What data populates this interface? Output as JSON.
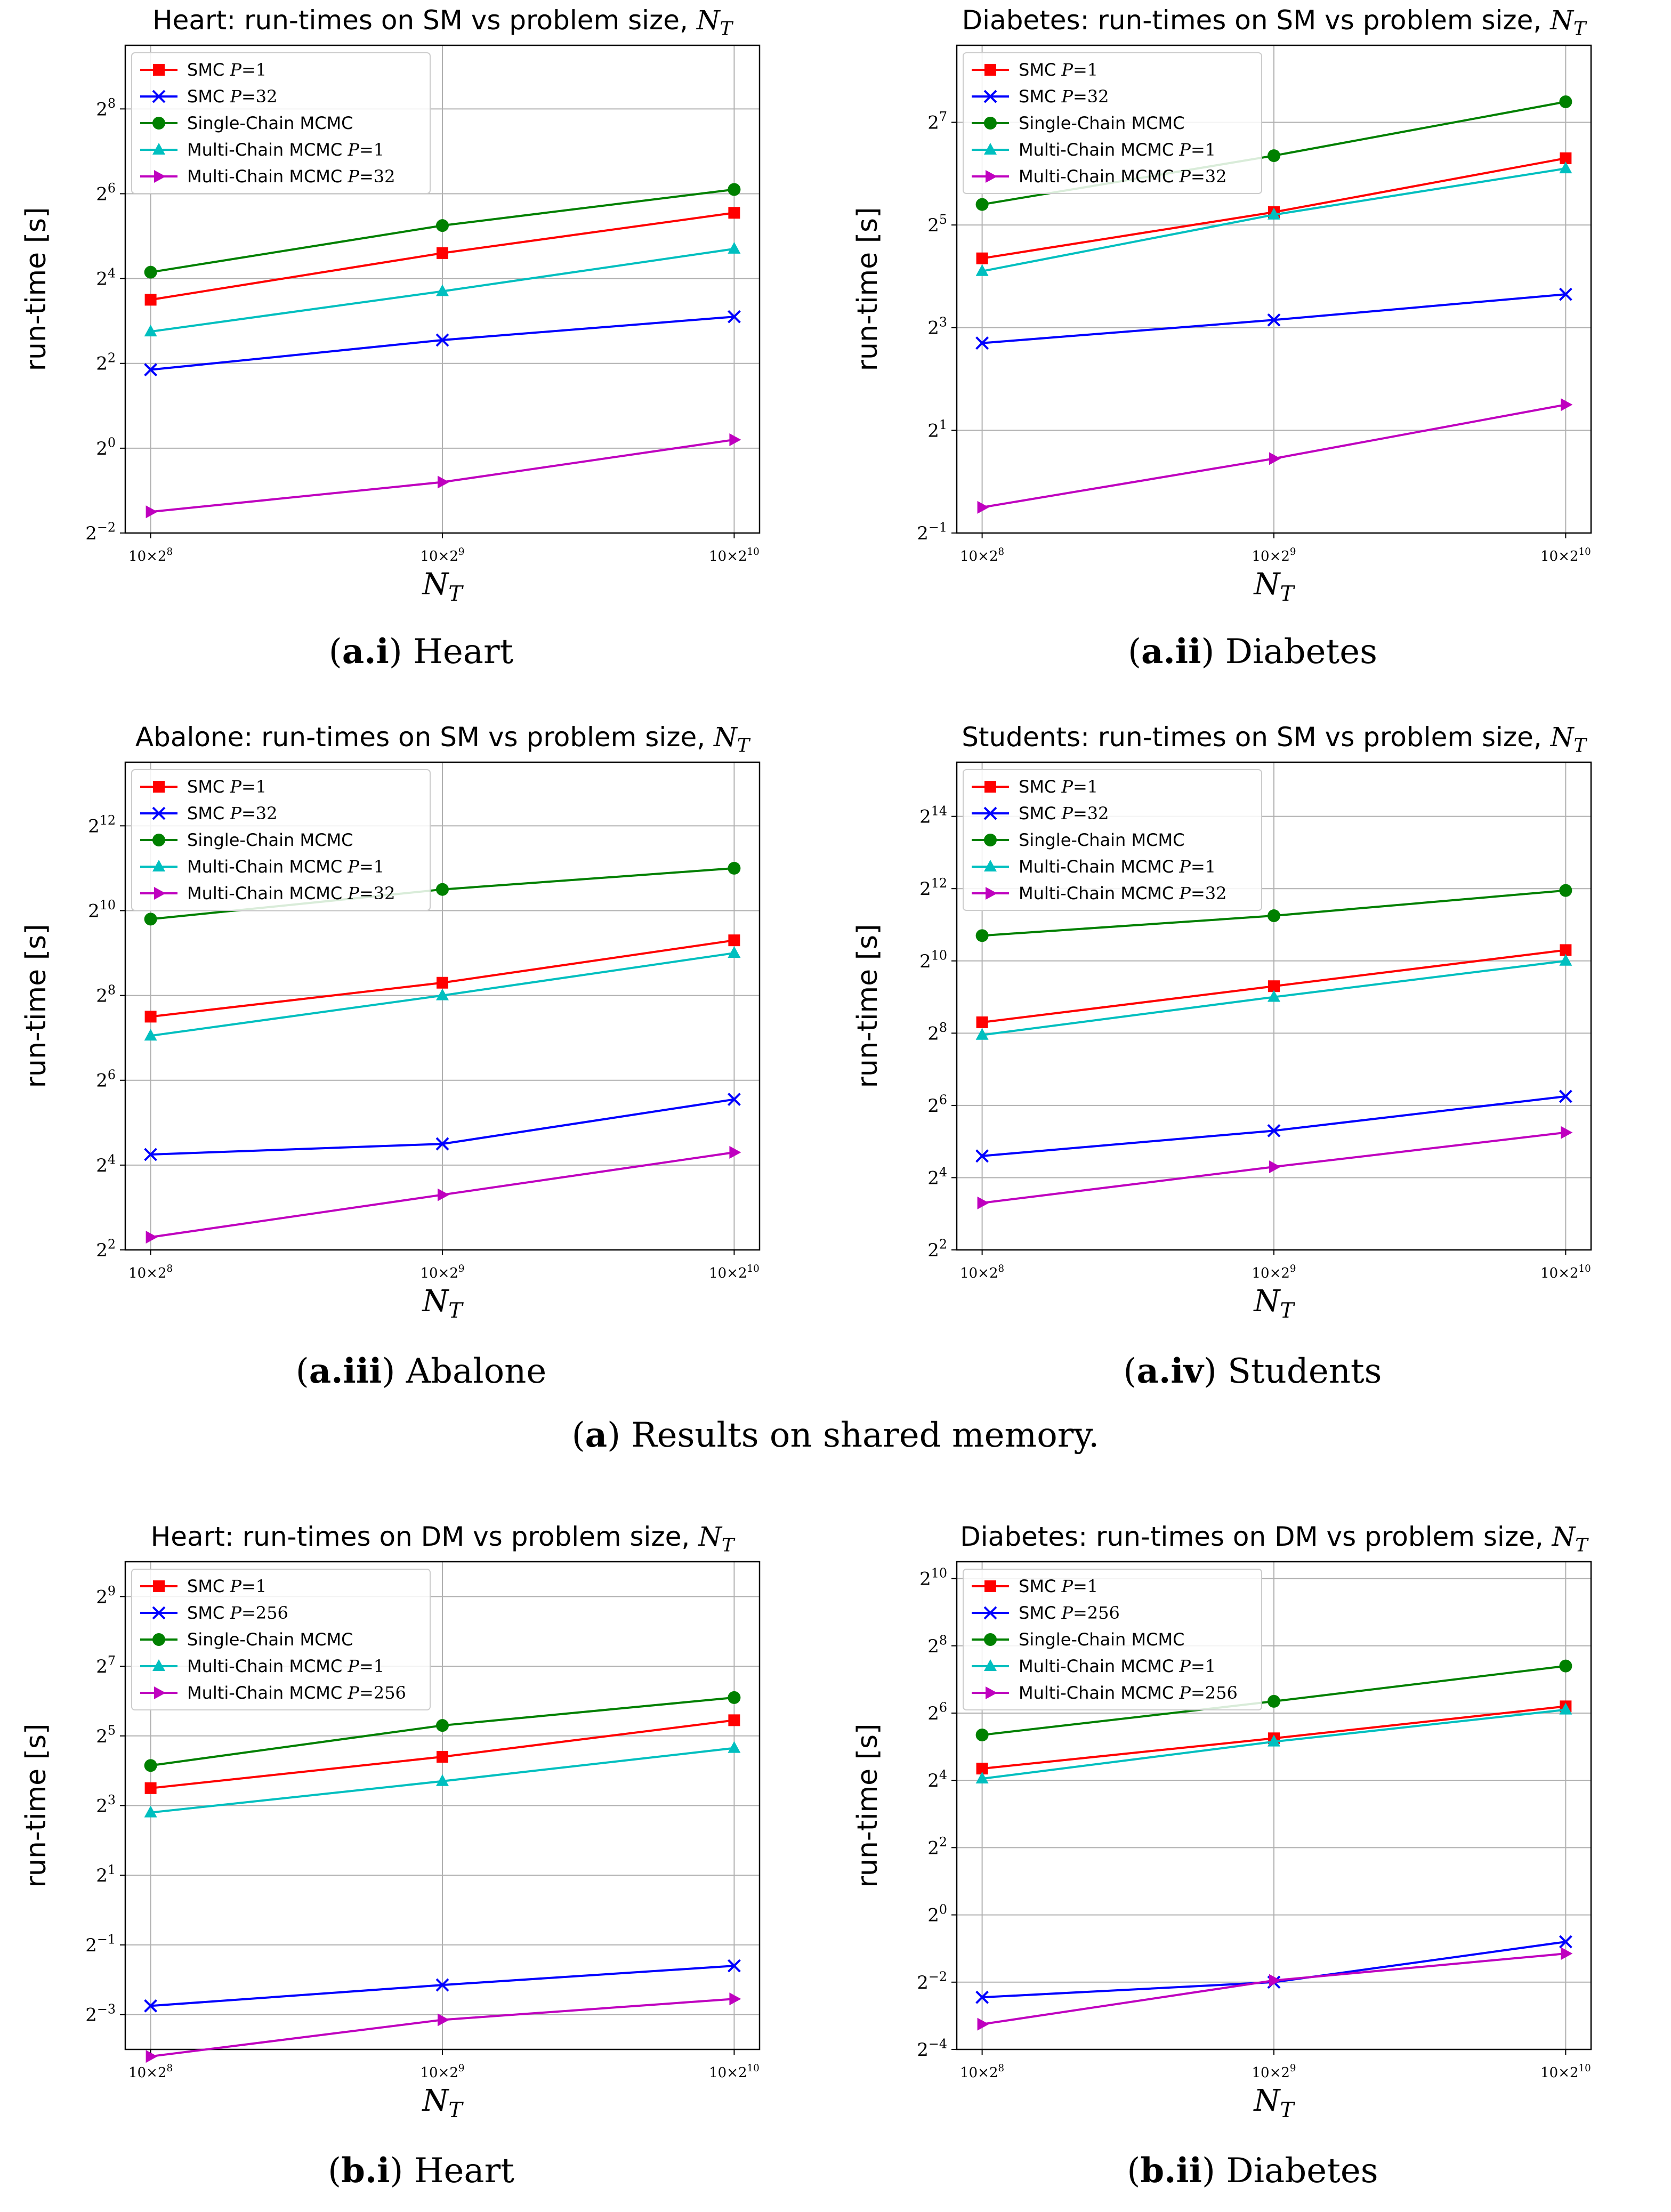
{
  "chart_data": [
    {
      "id": "a-i",
      "type": "line",
      "title": "Heart: run-times on SM vs problem size, N_T",
      "xlabel": "N_T",
      "ylabel": "run-time [s]",
      "yscale": "log2",
      "x_tick_labels": [
        "10×2^8",
        "10×2^9",
        "10×2^10"
      ],
      "ylim_log2": [
        -2,
        9.5
      ],
      "y_ticks_log2": [
        -2,
        0,
        2,
        4,
        6,
        8
      ],
      "legend_position": "top-left",
      "series": [
        {
          "name": "SMC P=1",
          "color": "#ff0000",
          "marker": "square",
          "log2_values": [
            3.5,
            4.6,
            5.55
          ]
        },
        {
          "name": "SMC P=32",
          "color": "#0000ff",
          "marker": "x",
          "log2_values": [
            1.85,
            2.55,
            3.1
          ]
        },
        {
          "name": "Single-Chain MCMC",
          "color": "#008000",
          "marker": "circle",
          "log2_values": [
            4.15,
            5.25,
            6.1
          ]
        },
        {
          "name": "Multi-Chain MCMC P=1",
          "color": "#00bfbf",
          "marker": "triangle-up",
          "log2_values": [
            2.75,
            3.7,
            4.7
          ]
        },
        {
          "name": "Multi-Chain MCMC P=32",
          "color": "#bf00bf",
          "marker": "triangle-right",
          "log2_values": [
            -1.5,
            -0.8,
            0.2
          ]
        }
      ]
    },
    {
      "id": "a-ii",
      "type": "line",
      "title": "Diabetes: run-times on SM vs problem size, N_T",
      "xlabel": "N_T",
      "ylabel": "run-time [s]",
      "yscale": "log2",
      "x_tick_labels": [
        "10×2^8",
        "10×2^9",
        "10×2^10"
      ],
      "ylim_log2": [
        -1,
        8.5
      ],
      "y_ticks_log2": [
        -1,
        1,
        3,
        5,
        7
      ],
      "legend_position": "top-left",
      "series": [
        {
          "name": "SMC P=1",
          "color": "#ff0000",
          "marker": "square",
          "log2_values": [
            4.35,
            5.25,
            6.3
          ]
        },
        {
          "name": "SMC P=32",
          "color": "#0000ff",
          "marker": "x",
          "log2_values": [
            2.7,
            3.15,
            3.65
          ]
        },
        {
          "name": "Single-Chain MCMC",
          "color": "#008000",
          "marker": "circle",
          "log2_values": [
            5.4,
            6.35,
            7.4
          ]
        },
        {
          "name": "Multi-Chain MCMC P=1",
          "color": "#00bfbf",
          "marker": "triangle-up",
          "log2_values": [
            4.1,
            5.2,
            6.1
          ]
        },
        {
          "name": "Multi-Chain MCMC P=32",
          "color": "#bf00bf",
          "marker": "triangle-right",
          "log2_values": [
            -0.5,
            0.45,
            1.5
          ]
        }
      ]
    },
    {
      "id": "a-iii",
      "type": "line",
      "title": "Abalone: run-times on SM vs problem size, N_T",
      "xlabel": "N_T",
      "ylabel": "run-time [s]",
      "yscale": "log2",
      "x_tick_labels": [
        "10×2^8",
        "10×2^9",
        "10×2^10"
      ],
      "ylim_log2": [
        2,
        13.5
      ],
      "y_ticks_log2": [
        2,
        4,
        6,
        8,
        10,
        12
      ],
      "legend_position": "top-left",
      "series": [
        {
          "name": "SMC P=1",
          "color": "#ff0000",
          "marker": "square",
          "log2_values": [
            7.5,
            8.3,
            9.3
          ]
        },
        {
          "name": "SMC P=32",
          "color": "#0000ff",
          "marker": "x",
          "log2_values": [
            4.25,
            4.5,
            5.55
          ]
        },
        {
          "name": "Single-Chain MCMC",
          "color": "#008000",
          "marker": "circle",
          "log2_values": [
            9.8,
            10.5,
            11
          ]
        },
        {
          "name": "Multi-Chain MCMC P=1",
          "color": "#00bfbf",
          "marker": "triangle-up",
          "log2_values": [
            7.05,
            8,
            9
          ]
        },
        {
          "name": "Multi-Chain MCMC P=32",
          "color": "#bf00bf",
          "marker": "triangle-right",
          "log2_values": [
            2.3,
            3.3,
            4.3
          ]
        }
      ]
    },
    {
      "id": "a-iv",
      "type": "line",
      "title": "Students: run-times on SM vs problem size, N_T",
      "xlabel": "N_T",
      "ylabel": "run-time [s]",
      "yscale": "log2",
      "x_tick_labels": [
        "10×2^8",
        "10×2^9",
        "10×2^10"
      ],
      "ylim_log2": [
        2,
        15.5
      ],
      "y_ticks_log2": [
        2,
        4,
        6,
        8,
        10,
        12,
        14
      ],
      "legend_position": "top-left",
      "series": [
        {
          "name": "SMC P=1",
          "color": "#ff0000",
          "marker": "square",
          "log2_values": [
            8.3,
            9.3,
            10.3
          ]
        },
        {
          "name": "SMC P=32",
          "color": "#0000ff",
          "marker": "x",
          "log2_values": [
            4.6,
            5.3,
            6.25
          ]
        },
        {
          "name": "Single-Chain MCMC",
          "color": "#008000",
          "marker": "circle",
          "log2_values": [
            10.7,
            11.25,
            11.95
          ]
        },
        {
          "name": "Multi-Chain MCMC P=1",
          "color": "#00bfbf",
          "marker": "triangle-up",
          "log2_values": [
            7.95,
            9,
            10
          ]
        },
        {
          "name": "Multi-Chain MCMC P=32",
          "color": "#bf00bf",
          "marker": "triangle-right",
          "log2_values": [
            3.3,
            4.3,
            5.25
          ]
        }
      ]
    },
    {
      "id": "b-i",
      "type": "line",
      "title": "Heart: run-times on DM vs problem size, N_T",
      "xlabel": "N_T",
      "ylabel": "run-time [s]",
      "yscale": "log2",
      "x_tick_labels": [
        "10×2^8",
        "10×2^9",
        "10×2^10"
      ],
      "ylim_log2": [
        -4,
        10
      ],
      "y_ticks_log2": [
        -3,
        -1,
        1,
        3,
        5,
        7,
        9
      ],
      "legend_position": "top-left",
      "series": [
        {
          "name": "SMC P=1",
          "color": "#ff0000",
          "marker": "square",
          "log2_values": [
            3.5,
            4.4,
            5.45
          ]
        },
        {
          "name": "SMC P=256",
          "color": "#0000ff",
          "marker": "x",
          "log2_values": [
            -2.75,
            -2.15,
            -1.6
          ]
        },
        {
          "name": "Single-Chain MCMC",
          "color": "#008000",
          "marker": "circle",
          "log2_values": [
            4.15,
            5.3,
            6.1
          ]
        },
        {
          "name": "Multi-Chain MCMC P=1",
          "color": "#00bfbf",
          "marker": "triangle-up",
          "log2_values": [
            2.8,
            3.7,
            4.65
          ]
        },
        {
          "name": "Multi-Chain MCMC P=256",
          "color": "#bf00bf",
          "marker": "triangle-right",
          "log2_values": [
            -4.2,
            -3.15,
            -2.55
          ]
        }
      ]
    },
    {
      "id": "b-ii",
      "type": "line",
      "title": "Diabetes: run-times on DM vs problem size, N_T",
      "xlabel": "N_T",
      "ylabel": "run-time [s]",
      "yscale": "log2",
      "x_tick_labels": [
        "10×2^8",
        "10×2^9",
        "10×2^10"
      ],
      "ylim_log2": [
        -4,
        10.5
      ],
      "y_ticks_log2": [
        -4,
        -2,
        0,
        2,
        4,
        6,
        8,
        10
      ],
      "legend_position": "top-left",
      "series": [
        {
          "name": "SMC P=1",
          "color": "#ff0000",
          "marker": "square",
          "log2_values": [
            4.35,
            5.25,
            6.2
          ]
        },
        {
          "name": "SMC P=256",
          "color": "#0000ff",
          "marker": "x",
          "log2_values": [
            -2.45,
            -2,
            -0.8
          ]
        },
        {
          "name": "Single-Chain MCMC",
          "color": "#008000",
          "marker": "circle",
          "log2_values": [
            5.35,
            6.35,
            7.4
          ]
        },
        {
          "name": "Multi-Chain MCMC P=1",
          "color": "#00bfbf",
          "marker": "triangle-up",
          "log2_values": [
            4.05,
            5.15,
            6.1
          ]
        },
        {
          "name": "Multi-Chain MCMC P=256",
          "color": "#bf00bf",
          "marker": "triangle-right",
          "log2_values": [
            -3.25,
            -1.95,
            -1.15
          ]
        }
      ]
    }
  ],
  "captions": {
    "a_i": {
      "label": "a.i",
      "text": "Heart"
    },
    "a_ii": {
      "label": "a.ii",
      "text": "Diabetes"
    },
    "a_iii": {
      "label": "a.iii",
      "text": "Abalone"
    },
    "a_iv": {
      "label": "a.iv",
      "text": "Students"
    },
    "a_group": {
      "label": "a",
      "text": "Results on shared memory."
    },
    "b_i": {
      "label": "b.i",
      "text": "Heart"
    },
    "b_ii": {
      "label": "b.ii",
      "text": "Diabetes"
    }
  }
}
